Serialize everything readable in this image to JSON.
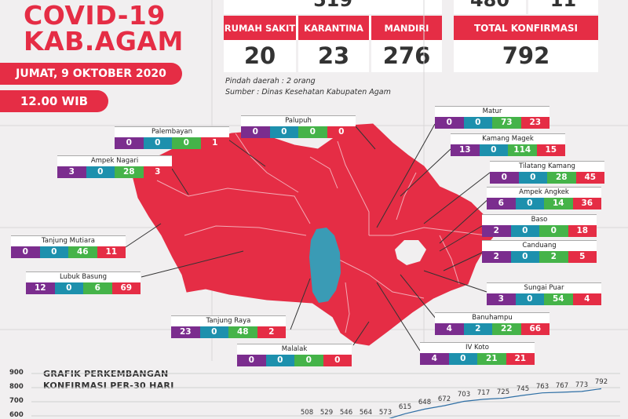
{
  "header": {
    "title_line1": "COVID-19",
    "title_line2": "KAB.AGAM",
    "date": "JUMAT, 9 OKTOBER 2020",
    "time": "12.00 WIB"
  },
  "stats_top": {
    "partial_left": "519",
    "partial_right_a": "480",
    "partial_right_b": "11"
  },
  "stats": [
    {
      "label": "RUMAH SAKIT",
      "value": "20"
    },
    {
      "label": "KARANTINA",
      "value": "23"
    },
    {
      "label": "MANDIRI",
      "value": "276"
    }
  ],
  "total": {
    "label": "TOTAL KONFIRMASI",
    "value": "792"
  },
  "notes": {
    "pindah": "Pindah daerah : 2 orang",
    "sumber": "Sumber : Dinas Kesehatan Kabupaten Agam"
  },
  "colors": {
    "red": "#e52d45",
    "purple": "#7b2d8e",
    "teal": "#1d90ad",
    "green": "#45b349",
    "lake": "#3a9bb5"
  },
  "districts": [
    {
      "name": "Palupuh",
      "values": [
        "0",
        "0",
        "0",
        "0"
      ]
    },
    {
      "name": "Palembayan",
      "values": [
        "0",
        "0",
        "0",
        "1"
      ]
    },
    {
      "name": "Ampek Nagari",
      "values": [
        "3",
        "0",
        "28",
        "3"
      ]
    },
    {
      "name": "Tanjung Mutiara",
      "values": [
        "0",
        "0",
        "46",
        "11"
      ]
    },
    {
      "name": "Lubuk Basung",
      "values": [
        "12",
        "0",
        "6",
        "69"
      ]
    },
    {
      "name": "Tanjung Raya",
      "values": [
        "23",
        "0",
        "48",
        "2"
      ]
    },
    {
      "name": "Malalak",
      "values": [
        "0",
        "0",
        "0",
        "0"
      ]
    },
    {
      "name": "Matur",
      "values": [
        "0",
        "0",
        "73",
        "23"
      ]
    },
    {
      "name": "Kamang Magek",
      "values": [
        "13",
        "0",
        "114",
        "15"
      ]
    },
    {
      "name": "Tilatang Kamang",
      "values": [
        "0",
        "0",
        "28",
        "45"
      ]
    },
    {
      "name": "Ampek Angkek",
      "values": [
        "6",
        "0",
        "14",
        "36"
      ]
    },
    {
      "name": "Baso",
      "values": [
        "2",
        "0",
        "0",
        "18"
      ]
    },
    {
      "name": "Canduang",
      "values": [
        "2",
        "0",
        "2",
        "5"
      ]
    },
    {
      "name": "Sungai Puar",
      "values": [
        "3",
        "0",
        "54",
        "4"
      ]
    },
    {
      "name": "Banuhampu",
      "values": [
        "4",
        "2",
        "22",
        "66"
      ]
    },
    {
      "name": "IV Koto",
      "values": [
        "4",
        "0",
        "21",
        "21"
      ]
    }
  ],
  "chart_data": {
    "type": "line",
    "title_line1": "GRAFIK PERKEMBANGAN",
    "title_line2": "KONFIRMASI PER-30 HARI",
    "y_ticks": [
      "900",
      "800",
      "700",
      "600"
    ],
    "ylim": [
      550,
      900
    ],
    "values": [
      508,
      529,
      546,
      564,
      573,
      615,
      648,
      672,
      703,
      717,
      725,
      745,
      763,
      767,
      773,
      792
    ]
  }
}
